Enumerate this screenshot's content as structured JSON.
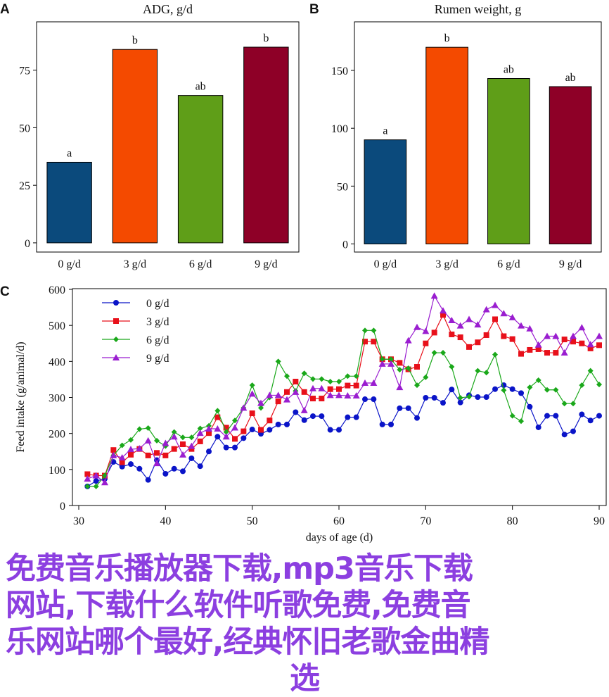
{
  "chart_data": [
    {
      "panel": "A",
      "type": "bar",
      "title": "ADG, g/d",
      "categories": [
        "0 g/d",
        "3 g/d",
        "6 g/d",
        "9 g/d"
      ],
      "values": [
        35,
        84,
        64,
        85
      ],
      "labels": [
        "a",
        "b",
        "ab",
        "b"
      ],
      "yticks": [
        0,
        25,
        50,
        75
      ],
      "ylim": [
        -4,
        96
      ],
      "colors": [
        "#0b4a7c",
        "#f44a00",
        "#5f9e18",
        "#8e0027"
      ]
    },
    {
      "panel": "B",
      "type": "bar",
      "title": "Rumen weight, g",
      "categories": [
        "0 g/d",
        "3 g/d",
        "6 g/d",
        "9 g/d"
      ],
      "values": [
        90,
        170,
        143,
        136
      ],
      "labels": [
        "a",
        "b",
        "ab",
        "ab"
      ],
      "yticks": [
        0,
        50,
        100,
        150
      ],
      "ylim": [
        -7,
        192
      ],
      "colors": [
        "#0b4a7c",
        "#f44a00",
        "#5f9e18",
        "#8e0027"
      ]
    },
    {
      "panel": "C",
      "type": "line",
      "xlabel": "days of age (d)",
      "ylabel": "Feed intake (g/animal/d)",
      "xlim": [
        30,
        90
      ],
      "ylim": [
        0,
        600
      ],
      "xticks": [
        30,
        40,
        50,
        60,
        70,
        80,
        90
      ],
      "yticks": [
        0,
        100,
        200,
        300,
        400,
        500,
        600
      ],
      "legend": "top-left",
      "x": [
        31,
        32,
        33,
        34,
        35,
        36,
        37,
        38,
        39,
        40,
        41,
        42,
        43,
        44,
        45,
        46,
        47,
        48,
        49,
        50,
        51,
        52,
        53,
        54,
        55,
        56,
        57,
        58,
        59,
        60,
        61,
        62,
        63,
        64,
        65,
        66,
        67,
        68,
        69,
        70,
        71,
        72,
        73,
        74,
        75,
        76,
        77,
        78,
        79,
        80,
        81,
        82,
        83,
        84,
        85,
        86,
        87,
        88,
        89,
        90
      ],
      "series": [
        {
          "name": "0 g/d",
          "color": "#0a14c8",
          "marker": "circle",
          "values": [
            53,
            68,
            74,
            121,
            108,
            115,
            102,
            71,
            126,
            88,
            102,
            95,
            131,
            109,
            150,
            191,
            161,
            161,
            187,
            211,
            199,
            210,
            225,
            225,
            259,
            237,
            248,
            248,
            210,
            210,
            245,
            245,
            295,
            295,
            225,
            225,
            270,
            270,
            243,
            299,
            299,
            285,
            322,
            286,
            306,
            301,
            301,
            323,
            334,
            323,
            312,
            274,
            217,
            249,
            249,
            197,
            206,
            253,
            236,
            249
          ]
        },
        {
          "name": "3 g/d",
          "color": "#e8101a",
          "marker": "square",
          "values": [
            87,
            83,
            83,
            154,
            120,
            141,
            157,
            139,
            146,
            139,
            157,
            170,
            157,
            178,
            201,
            245,
            216,
            185,
            206,
            256,
            210,
            236,
            289,
            315,
            344,
            315,
            297,
            297,
            323,
            323,
            333,
            333,
            455,
            455,
            406,
            406,
            396,
            378,
            385,
            450,
            480,
            529,
            475,
            467,
            440,
            453,
            473,
            517,
            470,
            462,
            421,
            432,
            434,
            424,
            424,
            461,
            455,
            450,
            436,
            445
          ]
        },
        {
          "name": "6 g/d",
          "color": "#1aa81a",
          "marker": "diamond",
          "values": [
            53,
            53,
            83,
            139,
            167,
            182,
            212,
            215,
            180,
            165,
            204,
            189,
            189,
            214,
            221,
            263,
            204,
            236,
            271,
            334,
            271,
            300,
            400,
            359,
            318,
            367,
            351,
            351,
            344,
            344,
            359,
            359,
            486,
            486,
            406,
            406,
            377,
            381,
            334,
            356,
            424,
            424,
            385,
            299,
            302,
            374,
            369,
            419,
            320,
            249,
            234,
            328,
            348,
            321,
            321,
            283,
            283,
            334,
            374,
            336
          ]
        },
        {
          "name": "9 g/d",
          "color": "#9a1ed0",
          "marker": "triangle",
          "values": [
            74,
            83,
            64,
            139,
            133,
            156,
            158,
            180,
            117,
            173,
            191,
            141,
            165,
            201,
            213,
            213,
            191,
            216,
            271,
            310,
            284,
            306,
            306,
            294,
            315,
            264,
            325,
            325,
            306,
            306,
            305,
            305,
            340,
            340,
            393,
            393,
            328,
            458,
            495,
            484,
            582,
            541,
            514,
            499,
            517,
            502,
            544,
            556,
            533,
            522,
            499,
            491,
            446,
            470,
            470,
            424,
            470,
            494,
            447,
            470
          ]
        }
      ]
    }
  ],
  "watermark": [
    "免费音乐播放器下载,mp3音乐下载",
    "网站,下载什么软件听歌免费,免费音",
    "乐网站哪个最好,经典怀旧老歌金曲精",
    "选"
  ]
}
